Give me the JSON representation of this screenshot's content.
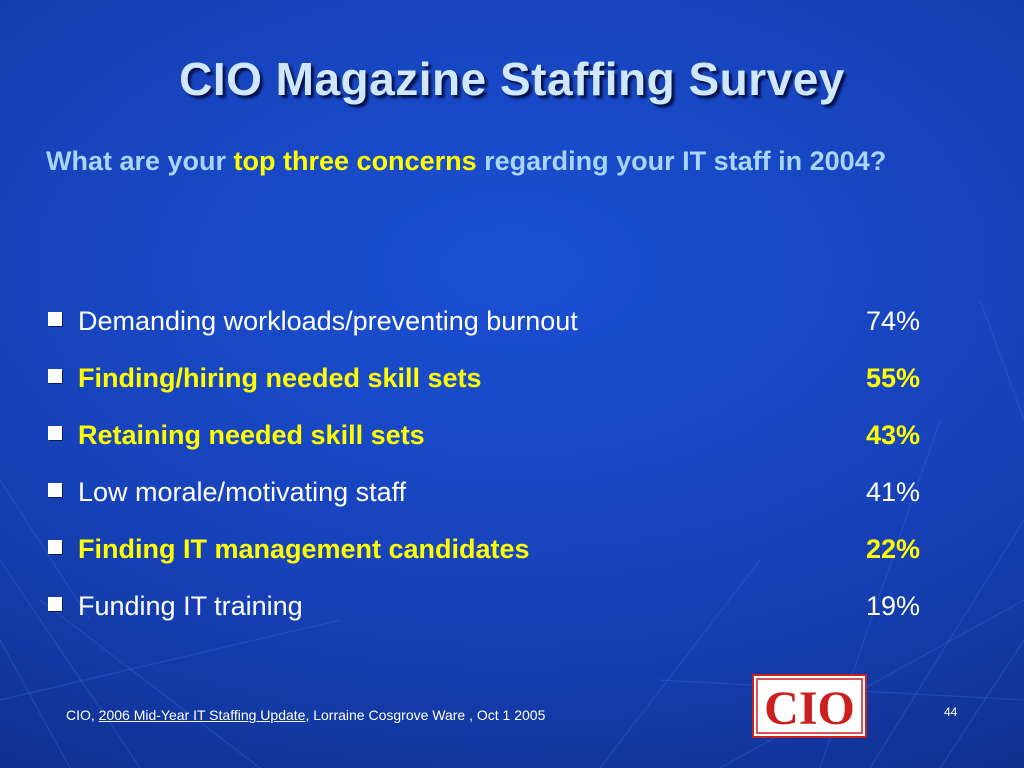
{
  "slide": {
    "title": "CIO Magazine Staffing Survey",
    "question": {
      "prefix": "What are your ",
      "highlight": "top three concerns",
      "suffix": " regarding your IT staff in 2004?"
    },
    "items": [
      {
        "label": "Demanding workloads/preventing burnout",
        "percent": "74%",
        "emphasis": false
      },
      {
        "label": "Finding/hiring needed skill sets",
        "percent": "55%",
        "emphasis": true
      },
      {
        "label": "Retaining needed skill sets",
        "percent": "43%",
        "emphasis": true
      },
      {
        "label": "Low morale/motivating staff",
        "percent": "41%",
        "emphasis": false
      },
      {
        "label": "Finding IT management candidates",
        "percent": "22%",
        "emphasis": true
      },
      {
        "label": "Funding IT training",
        "percent": "19%",
        "emphasis": false
      }
    ],
    "footer": {
      "source_prefix": "CIO, ",
      "link_text": "2006 Mid-Year IT Staffing Update",
      "source_suffix": ", Lorraine Cosgrove Ware , Oct 1 2005"
    },
    "logo": {
      "text": "CIO",
      "color": "#cc1f1f"
    },
    "page_number": "44",
    "colors": {
      "background": "#1742b9",
      "title": "#cfe8ff",
      "question": "#a7d6ff",
      "highlight": "#ffff00"
    }
  }
}
